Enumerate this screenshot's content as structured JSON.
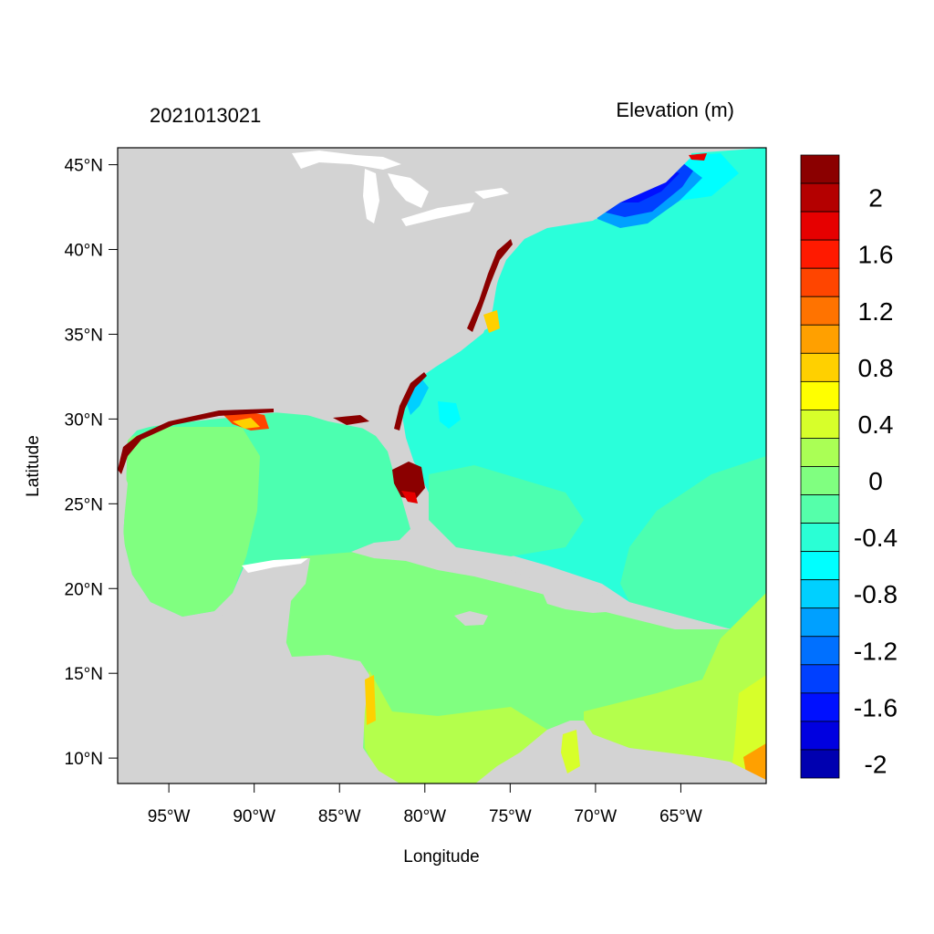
{
  "map": {
    "left_title": "2021013021",
    "right_title": "Elevation (m)",
    "x_axis_label": "Longitude",
    "y_axis_label": "Latitude",
    "lon_range": [
      -98,
      -60
    ],
    "lat_range": [
      8.5,
      46
    ],
    "x_ticks": [
      {
        "value": -95,
        "label": "95°W"
      },
      {
        "value": -90,
        "label": "90°W"
      },
      {
        "value": -85,
        "label": "85°W"
      },
      {
        "value": -80,
        "label": "80°W"
      },
      {
        "value": -75,
        "label": "75°W"
      },
      {
        "value": -70,
        "label": "70°W"
      },
      {
        "value": -65,
        "label": "65°W"
      }
    ],
    "y_ticks": [
      {
        "value": 45,
        "label": "45°N"
      },
      {
        "value": 40,
        "label": "40°N"
      },
      {
        "value": 35,
        "label": "35°N"
      },
      {
        "value": 30,
        "label": "30°N"
      },
      {
        "value": 25,
        "label": "25°N"
      },
      {
        "value": 20,
        "label": "20°N"
      },
      {
        "value": 15,
        "label": "15°N"
      },
      {
        "value": 10,
        "label": "10°N"
      }
    ],
    "colors": {
      "land": "#d3d3d3",
      "ocean_atlantic": "#2affda",
      "ocean_gulf": "#4cffb0",
      "ocean_caribbean": "#80ff80",
      "ocean_south": "#b4ff4c",
      "maine_low": "#0040ff",
      "florida_high": "#8b0000"
    }
  },
  "colorbar": {
    "colors": [
      "#8b0000",
      "#b40000",
      "#e60000",
      "#ff1a00",
      "#ff4500",
      "#ff7300",
      "#ffa000",
      "#ffd000",
      "#ffff00",
      "#d7ff2a",
      "#aaff55",
      "#80ff80",
      "#55ffaa",
      "#2affd5",
      "#00ffff",
      "#00d0ff",
      "#00a0ff",
      "#0070ff",
      "#0040ff",
      "#0010ff",
      "#0000e0",
      "#0000b0"
    ],
    "labels": [
      {
        "text": "2",
        "index": 1
      },
      {
        "text": "1.6",
        "index": 3
      },
      {
        "text": "1.2",
        "index": 5
      },
      {
        "text": "0.8",
        "index": 7
      },
      {
        "text": "0.4",
        "index": 9
      },
      {
        "text": "0",
        "index": 11
      },
      {
        "text": "-0.4",
        "index": 13
      },
      {
        "text": "-0.8",
        "index": 15
      },
      {
        "text": "-1.2",
        "index": 17
      },
      {
        "text": "-1.6",
        "index": 19
      },
      {
        "text": "-2",
        "index": 21
      }
    ]
  }
}
